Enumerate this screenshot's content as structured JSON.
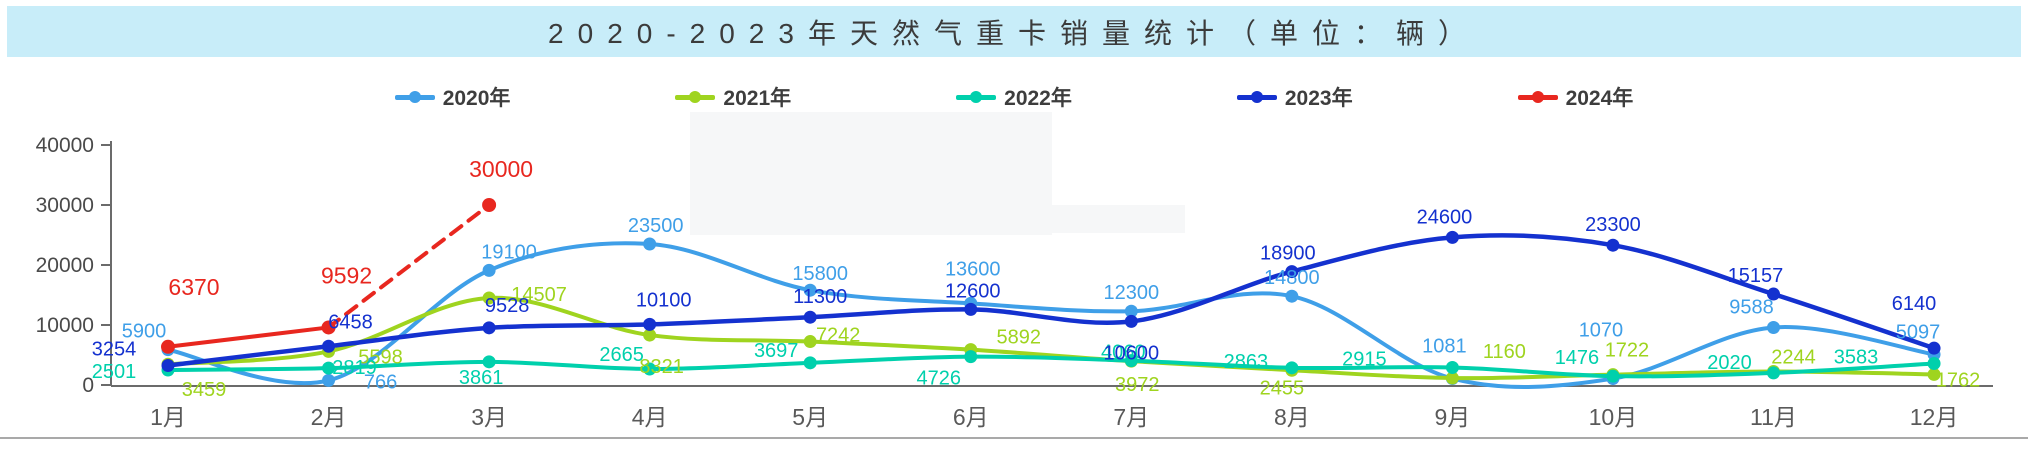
{
  "chart_data": {
    "type": "line",
    "title": "2020-2023年天然气重卡销量统计（单位：辆）",
    "categories": [
      "1月",
      "2月",
      "3月",
      "4月",
      "5月",
      "6月",
      "7月",
      "8月",
      "9月",
      "10月",
      "11月",
      "12月"
    ],
    "series": [
      {
        "name": "2020年",
        "color": "#3f9fe8",
        "dashed": false,
        "values": [
          5900,
          766,
          19100,
          23500,
          15800,
          13600,
          12300,
          14800,
          1081,
          1070,
          9588,
          5097
        ]
      },
      {
        "name": "2021年",
        "color": "#9fd41f",
        "dashed": false,
        "values": [
          3459,
          5598,
          14507,
          8321,
          7242,
          5892,
          3972,
          2455,
          1160,
          1722,
          2244,
          1762
        ]
      },
      {
        "name": "2022年",
        "color": "#00d0ac",
        "dashed": false,
        "values": [
          2501,
          2819,
          3861,
          2665,
          3697,
          4726,
          4060,
          2863,
          2915,
          1476,
          2020,
          3583
        ]
      },
      {
        "name": "2023年",
        "color": "#1431cf",
        "dashed": false,
        "values": [
          3254,
          6458,
          9528,
          10100,
          11300,
          12600,
          10600,
          18900,
          24600,
          23300,
          15157,
          6140
        ]
      },
      {
        "name": "2024年",
        "color": "#e8271f",
        "dashed": true,
        "values": [
          6370,
          9592,
          30000
        ]
      }
    ],
    "xlabel": "",
    "ylabel": "",
    "ylim": [
      0,
      40000
    ],
    "yticks": [
      0,
      10000,
      20000,
      30000,
      40000
    ],
    "grid": false,
    "legend_position": "top"
  },
  "colors": {
    "title_bar_bg": "#c8edf9",
    "title_text": "#3b3b3b",
    "axis": "#6b6b6b",
    "tick_text": "#4a4a4a",
    "month_text": "#595959"
  }
}
